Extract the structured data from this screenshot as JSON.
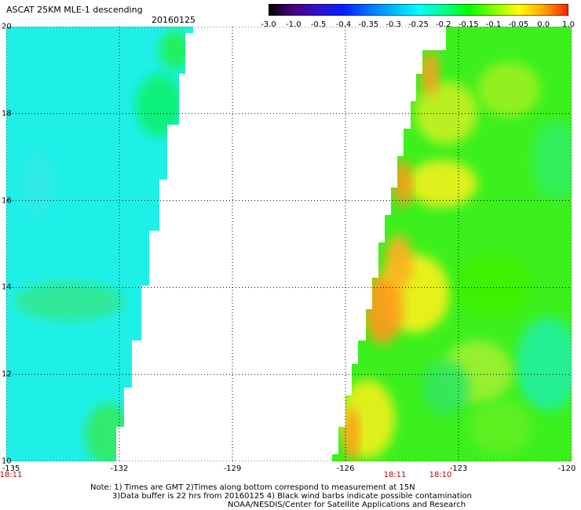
{
  "header": {
    "title": "ASCAT 25KM MLE-1 descending",
    "date": "20160125"
  },
  "colorbar": {
    "labels": [
      "-3.0",
      "-1.0",
      "-0.5",
      "-0.4",
      "-0.35",
      "-0.3",
      "-0.25",
      "-0.2",
      "-0.15",
      "-0.1",
      "-0.05",
      "0.0",
      "1.0"
    ],
    "colors": [
      "#000000",
      "#4b0082",
      "#3010d0",
      "#0020ff",
      "#0070ff",
      "#00b8ff",
      "#00ffff",
      "#00ff90",
      "#00ff00",
      "#80ff00",
      "#ffff00",
      "#ffa500",
      "#ff2000"
    ]
  },
  "map": {
    "lon_range": [
      -135,
      -120
    ],
    "lat_range": [
      10,
      20
    ],
    "lon_ticks": [
      "-135",
      "-132",
      "-129",
      "-126",
      "-123",
      "-120"
    ],
    "lat_ticks": [
      "20",
      "18",
      "16",
      "14",
      "12",
      "10"
    ],
    "time_labels": [
      "18:11",
      "18:11",
      "18:10"
    ],
    "swath_colors": {
      "cyan": "#1ef0e8",
      "green": "#3cf01e",
      "yellow": "#f0f01e",
      "orange": "#ff9a1e"
    }
  },
  "notes": {
    "line1": "Note: 1) Times are GMT 2)Times along bottom correspond to measurement at 15N",
    "line2": "3)Data buffer is 22 hrs from 20160125 4) Black wind barbs indicate possible contamination",
    "line3": "NOAA/NESDIS/Center for Satellite Applications and Research"
  }
}
